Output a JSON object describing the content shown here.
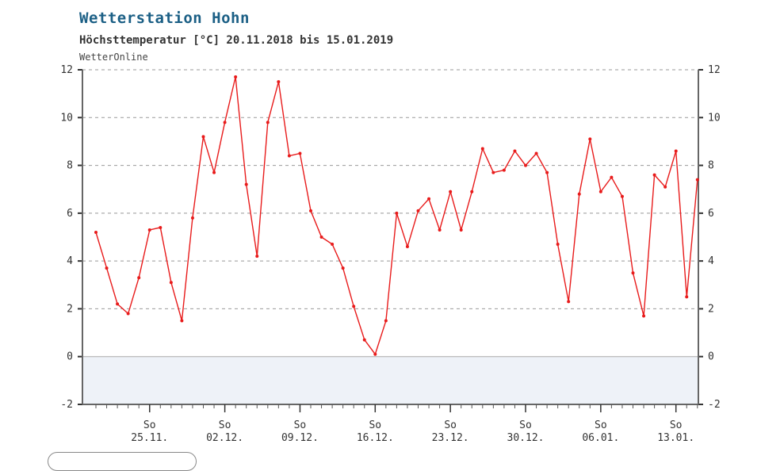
{
  "title": "Wetterstation Hohn",
  "subtitle": "Höchsttemperatur [°C] 20.11.2018 bis 15.01.2019",
  "source": "WetterOnline",
  "colors": {
    "line": "#e81b1b",
    "title": "#1b5f85",
    "below_zero_fill": "#eef2f8",
    "grid": "#999999"
  },
  "chart_data": {
    "type": "line",
    "title": "Höchsttemperatur [°C] 20.11.2018 bis 15.01.2019",
    "xlabel": "",
    "ylabel": "",
    "ylim": [
      -2,
      12
    ],
    "yticks": [
      -2,
      0,
      2,
      4,
      6,
      8,
      10,
      12
    ],
    "grid": true,
    "x_tick_labels": [
      {
        "day": 5,
        "top": "So",
        "bottom": "25.11."
      },
      {
        "day": 12,
        "top": "So",
        "bottom": "02.12."
      },
      {
        "day": 19,
        "top": "So",
        "bottom": "09.12."
      },
      {
        "day": 26,
        "top": "So",
        "bottom": "16.12."
      },
      {
        "day": 33,
        "top": "So",
        "bottom": "23.12."
      },
      {
        "day": 40,
        "top": "So",
        "bottom": "30.12."
      },
      {
        "day": 47,
        "top": "So",
        "bottom": "06.01."
      },
      {
        "day": 54,
        "top": "So",
        "bottom": "13.01."
      }
    ],
    "series": [
      {
        "start_date": "20.11.2018",
        "values": [
          5.2,
          3.7,
          2.2,
          1.8,
          3.3,
          5.3,
          5.4,
          3.1,
          1.5,
          5.8,
          9.2,
          7.7,
          9.8,
          11.7,
          7.2,
          4.2,
          9.8,
          11.5,
          8.4,
          8.5,
          6.1,
          5.0,
          4.7,
          3.7,
          2.1,
          0.7,
          0.1,
          1.5,
          6.0,
          4.6,
          6.1,
          6.6,
          5.3,
          6.9,
          5.3,
          6.9,
          8.7,
          7.7,
          7.8,
          8.6,
          8.0,
          8.5,
          7.7,
          4.7,
          2.3,
          6.8,
          9.1,
          6.9,
          7.5,
          6.7,
          3.5,
          1.7,
          7.6,
          7.1,
          8.6,
          2.5,
          7.4
        ]
      }
    ]
  }
}
